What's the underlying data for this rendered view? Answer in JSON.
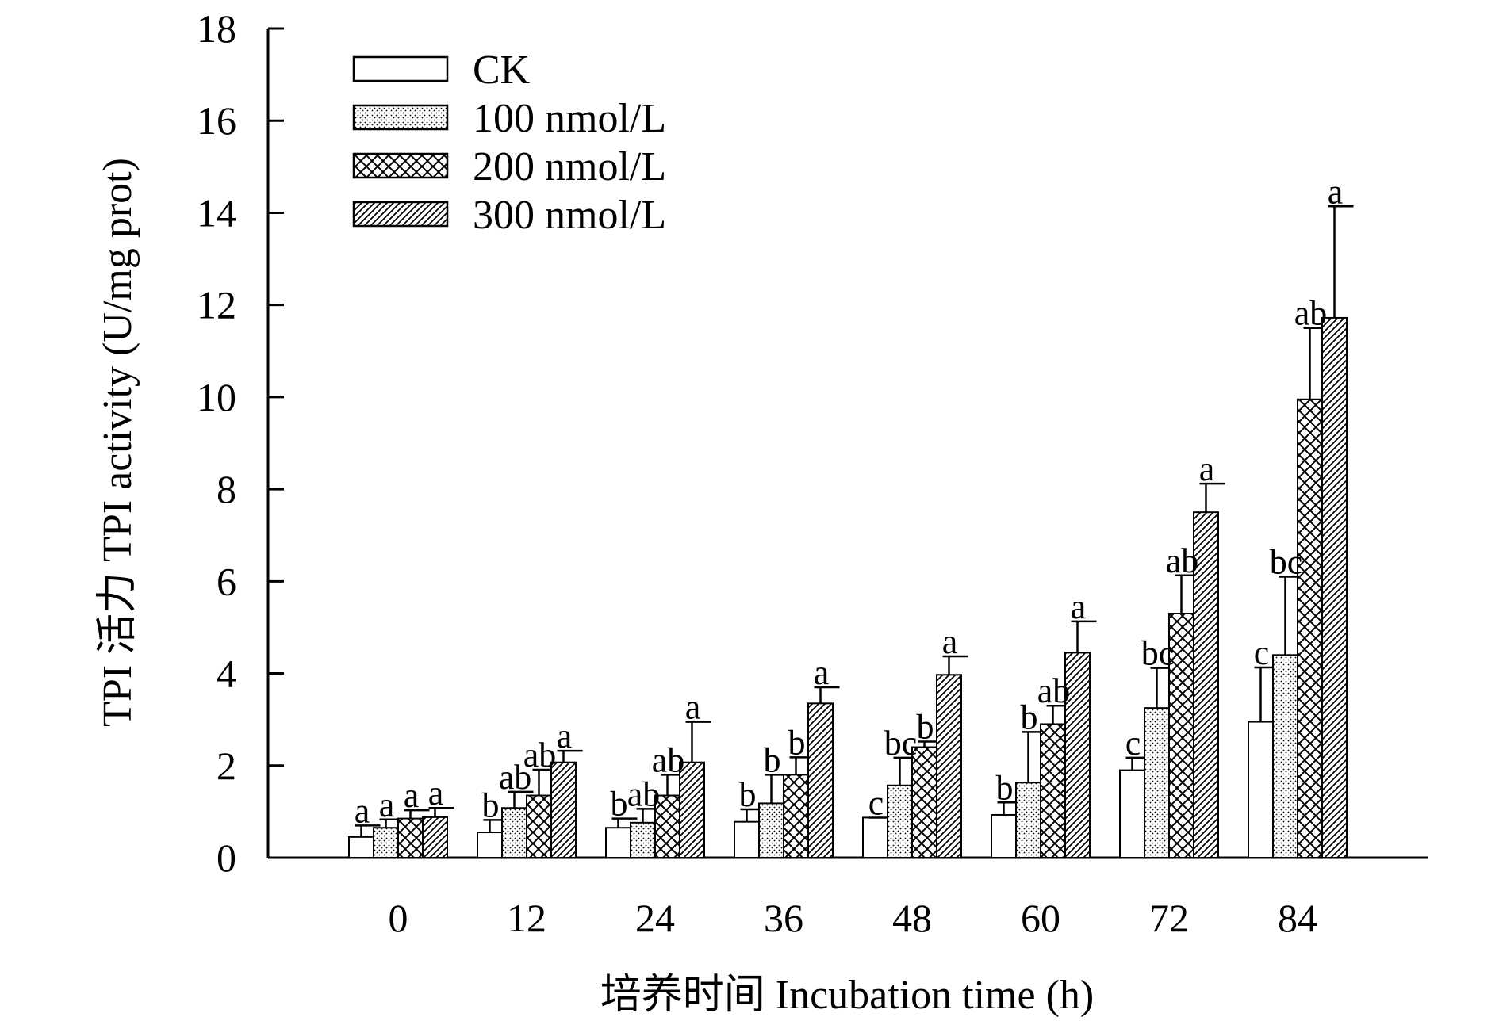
{
  "chart_data": {
    "type": "bar",
    "ylabel": "TPI 活力 TPI activity (U/mg prot)",
    "xlabel": "培养时间 Incubation time (h)",
    "ylim": [
      0,
      18
    ],
    "yticks": [
      0,
      2,
      4,
      6,
      8,
      10,
      12,
      14,
      16,
      18
    ],
    "categories": [
      "0",
      "12",
      "24",
      "36",
      "48",
      "60",
      "72",
      "84"
    ],
    "legend_position": "top-left",
    "grid": false,
    "series": [
      {
        "name": "CK",
        "pattern": "blank",
        "values": [
          0.45,
          0.55,
          0.65,
          0.78,
          0.87,
          0.93,
          1.9,
          2.95
        ],
        "errors": [
          0.25,
          0.27,
          0.2,
          0.27,
          0.0,
          0.27,
          0.27,
          1.18
        ],
        "letters": [
          "a",
          "b",
          "b",
          "b",
          "c",
          "b",
          "c",
          "c"
        ]
      },
      {
        "name": "100 nmol/L",
        "pattern": "dots",
        "values": [
          0.65,
          1.08,
          0.76,
          1.18,
          1.57,
          1.63,
          3.25,
          4.4
        ],
        "errors": [
          0.18,
          0.35,
          0.3,
          0.62,
          0.6,
          1.1,
          0.87,
          1.7
        ],
        "letters": [
          "a",
          "ab",
          "ab",
          "b",
          "bc",
          "b",
          "bc",
          "bc"
        ]
      },
      {
        "name": "200 nmol/L",
        "pattern": "crosshatch",
        "values": [
          0.85,
          1.35,
          1.35,
          1.8,
          2.4,
          2.9,
          5.3,
          9.95
        ],
        "errors": [
          0.18,
          0.56,
          0.45,
          0.38,
          0.12,
          0.4,
          0.83,
          1.55
        ],
        "letters": [
          "a",
          "ab",
          "ab",
          "b",
          "b",
          "ab",
          "ab",
          "ab"
        ]
      },
      {
        "name": "300 nmol/L",
        "pattern": "diagonal",
        "values": [
          0.88,
          2.07,
          2.07,
          3.35,
          3.97,
          4.45,
          7.5,
          11.72
        ],
        "errors": [
          0.2,
          0.25,
          0.88,
          0.35,
          0.4,
          0.68,
          0.62,
          2.42
        ],
        "letters": [
          "a",
          "a",
          "a",
          "a",
          "a",
          "a",
          "a",
          "a"
        ]
      }
    ]
  }
}
